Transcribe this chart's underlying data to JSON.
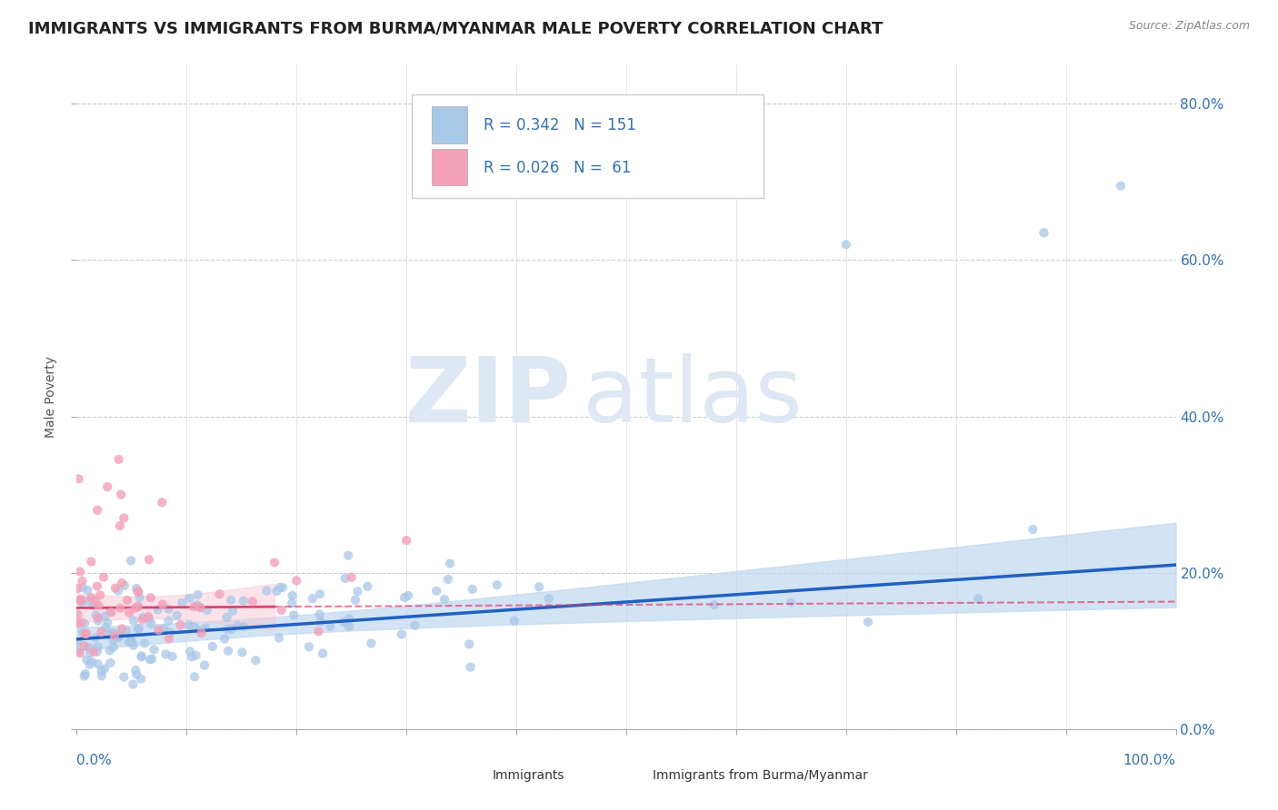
{
  "title": "IMMIGRANTS VS IMMIGRANTS FROM BURMA/MYANMAR MALE POVERTY CORRELATION CHART",
  "source": "Source: ZipAtlas.com",
  "ylabel": "Male Poverty",
  "legend_labels": [
    "Immigrants",
    "Immigrants from Burma/Myanmar"
  ],
  "series1_R": 0.342,
  "series1_N": 151,
  "series2_R": 0.026,
  "series2_N": 61,
  "series1_color": "#a8c8e8",
  "series2_color": "#f4a0b8",
  "series1_line_color": "#2060c0",
  "series2_line_color": "#e04070",
  "series1_ci_color": "#c0d8f0",
  "series2_ci_color": "#f8c8d4",
  "background_color": "#ffffff",
  "watermark_zip": "ZIP",
  "watermark_atlas": "atlas",
  "title_fontsize": 13,
  "axis_label_fontsize": 10,
  "legend_fontsize": 12,
  "seed": 42,
  "series1_intercept": 0.115,
  "series1_slope": 0.095,
  "series2_intercept": 0.155,
  "series2_slope": 0.008
}
